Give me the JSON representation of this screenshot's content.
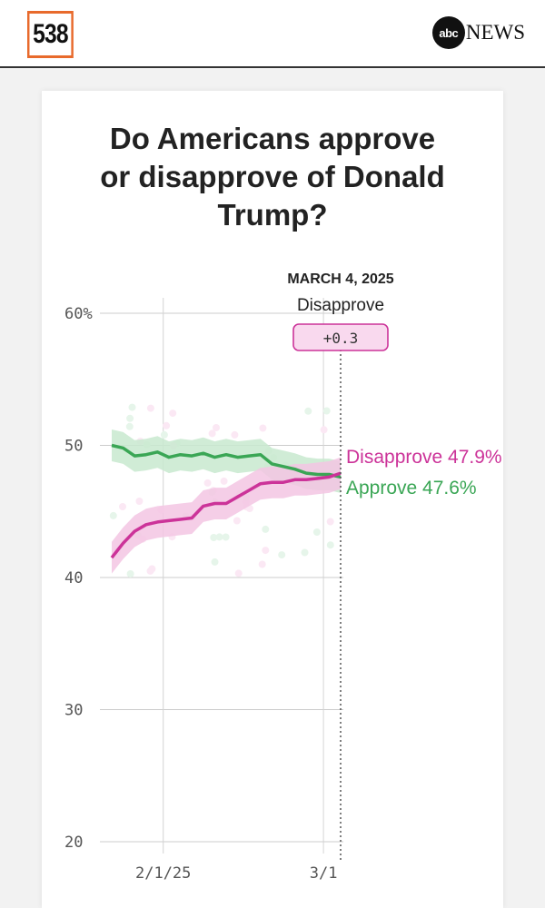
{
  "header": {
    "logo_text": "538",
    "partner_logo_circle": "abc",
    "partner_logo_word": "NEWS"
  },
  "title_lines": [
    "Do Americans approve",
    "or disapprove of Donald",
    "Trump?"
  ],
  "colors": {
    "approve": "#3aa655",
    "approve_band": "#c8e9cf",
    "disapprove": "#cc3399",
    "disapprove_band": "#f3c6e3",
    "logo_border": "#e86a2c"
  },
  "tooltip": {
    "date": "MARCH 4, 2025",
    "leader": "Disapprove",
    "margin": "+0.3"
  },
  "chart_data": {
    "type": "line",
    "title": "Do Americans approve or disapprove of Donald Trump?",
    "x_dates": [
      "1/23",
      "1/25",
      "1/27",
      "1/29",
      "1/31",
      "2/2",
      "2/4",
      "2/6",
      "2/8",
      "2/10",
      "2/12",
      "2/14",
      "2/16",
      "2/18",
      "2/20",
      "2/22",
      "2/24",
      "2/26",
      "2/28",
      "3/2",
      "3/4"
    ],
    "x_ticks": [
      {
        "date": "2/1",
        "label": "2/1/25"
      },
      {
        "date": "3/1",
        "label": "3/1"
      }
    ],
    "y_ticks": [
      {
        "value": 60,
        "label": "60%"
      },
      {
        "value": 50,
        "label": "50"
      },
      {
        "value": 40,
        "label": "40"
      },
      {
        "value": 30,
        "label": "30"
      },
      {
        "value": 20,
        "label": "20"
      }
    ],
    "ylim": [
      20,
      60
    ],
    "band_half_width": 1.2,
    "series": [
      {
        "name": "Approve",
        "key": "approve",
        "values": [
          50.0,
          49.8,
          49.2,
          49.3,
          49.5,
          49.1,
          49.3,
          49.2,
          49.4,
          49.1,
          49.3,
          49.1,
          49.2,
          49.3,
          48.6,
          48.4,
          48.2,
          47.9,
          47.8,
          47.8,
          47.6
        ],
        "end_label": "Approve 47.6%"
      },
      {
        "name": "Disapprove",
        "key": "disapprove",
        "values": [
          41.5,
          42.6,
          43.5,
          44.0,
          44.2,
          44.3,
          44.4,
          44.5,
          45.4,
          45.6,
          45.6,
          46.1,
          46.6,
          47.1,
          47.2,
          47.2,
          47.4,
          47.4,
          47.5,
          47.6,
          47.9
        ],
        "end_label": "Disapprove 47.9%"
      }
    ],
    "annotation": {
      "date": "3/4",
      "text": "MARCH 4, 2025"
    }
  }
}
